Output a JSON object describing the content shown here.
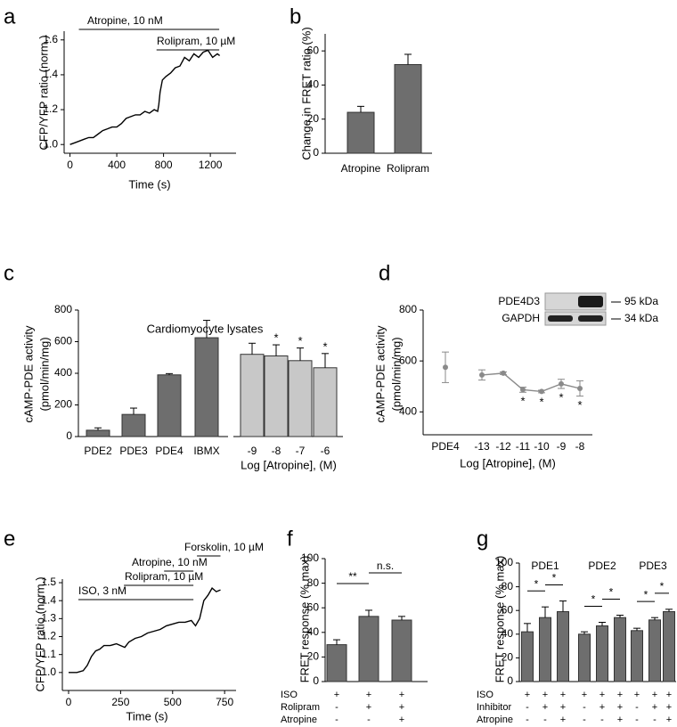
{
  "chart_data": [
    {
      "type": "line",
      "panel": "a",
      "xlabel": "Time (s)",
      "ylabel": [
        "CFP/YFP ratio (norm.)"
      ],
      "color": "#000000",
      "x": [
        0,
        40,
        80,
        120,
        160,
        200,
        240,
        280,
        320,
        360,
        400,
        440,
        480,
        520,
        560,
        600,
        640,
        680,
        720,
        750,
        760,
        770,
        790,
        820,
        860,
        900,
        940,
        980,
        1020,
        1060,
        1100,
        1140,
        1180,
        1220,
        1260,
        1280
      ],
      "values": [
        1.0,
        1.01,
        1.02,
        1.03,
        1.04,
        1.04,
        1.06,
        1.08,
        1.09,
        1.1,
        1.1,
        1.12,
        1.15,
        1.16,
        1.17,
        1.17,
        1.19,
        1.18,
        1.2,
        1.19,
        1.23,
        1.3,
        1.37,
        1.39,
        1.41,
        1.44,
        1.45,
        1.5,
        1.48,
        1.52,
        1.5,
        1.53,
        1.54,
        1.5,
        1.52,
        1.51
      ],
      "xlim": [
        -50,
        1420
      ],
      "ylim": [
        0.95,
        1.65
      ],
      "xticks": [
        0,
        400,
        800,
        1200
      ],
      "yticks": [
        {
          "value": 1,
          "label": "1.0"
        },
        {
          "value": 1.2,
          "label": "1.2"
        },
        {
          "value": 1.4,
          "label": "1.4"
        },
        {
          "value": 1.6,
          "label": "1.6"
        }
      ],
      "annotations": [
        {
          "text": "Atropine, 10 nM",
          "x": [
            76,
            1276
          ]
        },
        {
          "text": "Rolipram, 10 µM",
          "x": [
            740,
            1276
          ]
        }
      ]
    },
    {
      "type": "bar",
      "panel": "b",
      "ylabel": [
        "Change in FRET ratio (%)"
      ],
      "categories": [
        "Atropine",
        "Rolipram"
      ],
      "values": [
        24,
        52
      ],
      "errors": [
        3.5,
        6
      ],
      "color": "#6e6e6e",
      "ylim": [
        0,
        70
      ],
      "yticks": [
        0,
        20,
        40,
        60
      ]
    },
    {
      "type": "bar",
      "panel": "c",
      "title": "Cardiomyocyte lysates",
      "ylabel": [
        "cAMP-PDE activity",
        "(pmol/min/mg)"
      ],
      "xlabel": "Log [Atropine], (M)",
      "categories": [
        "PDE2",
        "PDE3",
        "PDE4",
        "IBMX",
        "-9",
        "-8",
        "-7",
        "-6"
      ],
      "values": [
        40,
        140,
        390,
        625,
        520,
        510,
        480,
        435
      ],
      "errors": [
        15,
        40,
        8,
        110,
        70,
        70,
        80,
        90
      ],
      "colors": [
        "#6e6e6e",
        "#6e6e6e",
        "#6e6e6e",
        "#6e6e6e",
        "#c8c8c8",
        "#c8c8c8",
        "#c8c8c8",
        "#c8c8c8"
      ],
      "significance": [
        null,
        null,
        null,
        null,
        null,
        "*",
        "*",
        "*"
      ],
      "ylim": [
        0,
        800
      ],
      "yticks": [
        0,
        200,
        400,
        600,
        800
      ]
    },
    {
      "type": "line",
      "panel": "d",
      "ylabel": [
        "cAMP-PDE activity",
        "(pmol/min/mg)"
      ],
      "xlabel": "Log [Atropine], (M)",
      "categories": [
        "PDE4",
        "-13",
        "-12",
        "-11",
        "-10",
        "-9",
        "-8"
      ],
      "series": [
        {
          "color": "#8a8a8a",
          "values": [
            575,
            null,
            null,
            null,
            null,
            null,
            null
          ],
          "errors": [
            60,
            null,
            null,
            null,
            null,
            null,
            null
          ]
        },
        {
          "color": "#8a8a8a",
          "values": [
            null,
            545,
            552,
            487,
            480,
            510,
            492
          ],
          "errors": [
            null,
            20,
            5,
            10,
            5,
            18,
            30
          ]
        }
      ],
      "significance": [
        null,
        null,
        null,
        "*",
        "*",
        "*",
        "*"
      ],
      "ylim": [
        310,
        800
      ],
      "yticks": [
        400,
        600,
        800
      ],
      "inset": {
        "labels": [
          "PDE4D3",
          "GAPDH"
        ],
        "sizes": [
          "95 kDa",
          "34 kDa"
        ]
      }
    },
    {
      "type": "line",
      "panel": "e",
      "xlabel": "Time (s)",
      "ylabel": [
        "CFP/YFP ratio (norm.)"
      ],
      "color": "#000000",
      "x": [
        0,
        40,
        70,
        90,
        110,
        130,
        150,
        170,
        200,
        230,
        250,
        270,
        290,
        320,
        350,
        380,
        410,
        440,
        470,
        500,
        530,
        560,
        590,
        610,
        630,
        650,
        670,
        690,
        710,
        730
      ],
      "values": [
        1.0,
        1.0,
        1.01,
        1.04,
        1.09,
        1.12,
        1.13,
        1.15,
        1.15,
        1.16,
        1.15,
        1.14,
        1.17,
        1.19,
        1.2,
        1.22,
        1.23,
        1.24,
        1.26,
        1.27,
        1.28,
        1.28,
        1.29,
        1.26,
        1.3,
        1.4,
        1.43,
        1.47,
        1.45,
        1.46
      ],
      "xlim": [
        -30,
        805
      ],
      "ylim": [
        0.9,
        1.52
      ],
      "xticks": [
        0,
        250,
        500,
        750
      ],
      "yticks": [
        {
          "value": 1,
          "label": "1.0"
        },
        {
          "value": 1.1,
          "label": "1.1"
        },
        {
          "value": 1.2,
          "label": "1.2"
        },
        {
          "value": 1.3,
          "label": "1.3"
        },
        {
          "value": 1.4,
          "label": "1.4"
        },
        {
          "value": 1.5,
          "label": "1.5"
        }
      ],
      "annotations": [
        {
          "text": "ISO, 3 nM",
          "x": [
            47,
            600
          ]
        },
        {
          "text": "Rolipram, 10 µM",
          "x": [
            266,
            600
          ]
        },
        {
          "text": "Atropine, 10 nM",
          "x": [
            459,
            600
          ]
        },
        {
          "text": "Forskolin, 10 µM",
          "x": [
            617,
            730
          ]
        }
      ]
    },
    {
      "type": "bar",
      "panel": "f",
      "ylabel": [
        "FRET response (% max)"
      ],
      "values": [
        30,
        53,
        50
      ],
      "errors": [
        4,
        5,
        3
      ],
      "color": "#6e6e6e",
      "ylim": [
        0,
        100
      ],
      "yticks": [
        0,
        20,
        40,
        60,
        80,
        100
      ],
      "brackets": [
        {
          "bars": [
            0,
            1
          ],
          "label": "**"
        },
        {
          "bars": [
            1,
            2
          ],
          "label": "n.s."
        }
      ],
      "table": [
        {
          "label": "ISO",
          "cells": [
            "+",
            "+",
            "+"
          ]
        },
        {
          "label": "Rolipram",
          "cells": [
            "-",
            "+",
            "+"
          ]
        },
        {
          "label": "Atropine",
          "cells": [
            "-",
            "-",
            "+"
          ]
        }
      ]
    },
    {
      "type": "bar",
      "panel": "g",
      "ylabel": [
        "FRET response (% max)"
      ],
      "groups": [
        "PDE1",
        "PDE2",
        "PDE3"
      ],
      "values": [
        42,
        54,
        59,
        40,
        47,
        54,
        43,
        52,
        59
      ],
      "errors": [
        7,
        9,
        9,
        2,
        3,
        2,
        2,
        2,
        2
      ],
      "color": "#6e6e6e",
      "ylim": [
        0,
        100
      ],
      "yticks": [
        0,
        20,
        40,
        60,
        80,
        100
      ],
      "brackets": [
        {
          "bars": [
            0,
            1
          ],
          "label": "*"
        },
        {
          "bars": [
            1,
            2
          ],
          "label": "*"
        },
        {
          "bars": [
            3,
            4
          ],
          "label": "*"
        },
        {
          "bars": [
            4,
            5
          ],
          "label": "*"
        },
        {
          "bars": [
            6,
            7
          ],
          "label": "*"
        },
        {
          "bars": [
            7,
            8
          ],
          "label": "*"
        }
      ],
      "table": [
        {
          "label": "ISO",
          "cells": [
            "+",
            "+",
            "+",
            "+",
            "+",
            "+",
            "+",
            "+",
            "+"
          ]
        },
        {
          "label": "Inhibitor",
          "cells": [
            "-",
            "+",
            "+",
            "-",
            "+",
            "+",
            "-",
            "+",
            "+"
          ]
        },
        {
          "label": "Atropine",
          "cells": [
            "-",
            "-",
            "+",
            "-",
            "-",
            "+",
            "-",
            "-",
            "+"
          ]
        }
      ]
    }
  ]
}
